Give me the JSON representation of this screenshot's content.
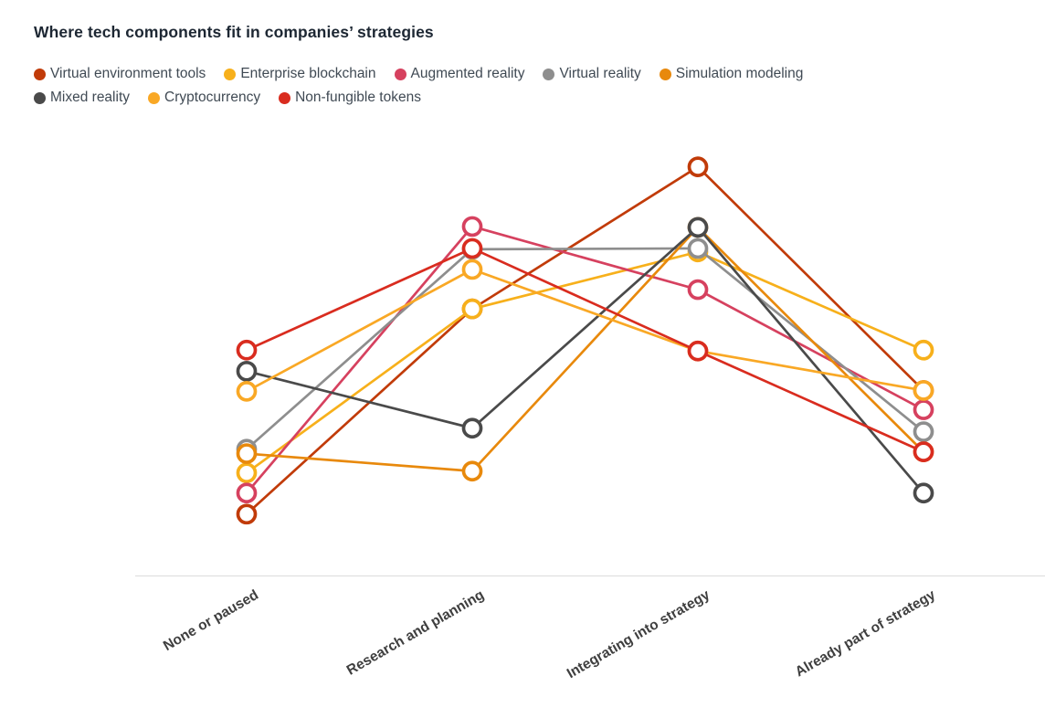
{
  "title": "Where tech components fit in companies’ strategies",
  "legend_rows": [
    [
      {
        "label": "Virtual environment tools",
        "color": "#c13b09"
      },
      {
        "label": "Enterprise blockchain",
        "color": "#f7b01b"
      },
      {
        "label": "Augmented reality",
        "color": "#d6415f"
      },
      {
        "label": "Virtual reality",
        "color": "#8e8e8e"
      },
      {
        "label": "Simulation modeling",
        "color": "#e8890c"
      }
    ],
    [
      {
        "label": "Mixed reality",
        "color": "#4a4a4a"
      },
      {
        "label": "Cryptocurrency",
        "color": "#f9a825"
      },
      {
        "label": "Non-fungible tokens",
        "color": "#d92c1f"
      }
    ]
  ],
  "chart_data": {
    "type": "line",
    "categories": [
      "None or paused",
      "Research and planning",
      "Integrating into strategy",
      "Already part of strategy"
    ],
    "series": [
      {
        "name": "Virtual environment tools",
        "color": "#c13b09",
        "values": [
          7.0,
          30.4,
          46.6,
          21.1
        ]
      },
      {
        "name": "Enterprise blockchain",
        "color": "#f7b01b",
        "values": [
          11.7,
          30.4,
          36.9,
          25.7
        ]
      },
      {
        "name": "Augmented reality",
        "color": "#d6415f",
        "values": [
          9.4,
          39.8,
          32.6,
          18.9
        ]
      },
      {
        "name": "Virtual reality",
        "color": "#8e8e8e",
        "values": [
          14.4,
          37.2,
          37.3,
          16.4
        ]
      },
      {
        "name": "Simulation modeling",
        "color": "#e8890c",
        "values": [
          13.9,
          11.9,
          39.7,
          14.1
        ]
      },
      {
        "name": "Mixed reality",
        "color": "#4a4a4a",
        "values": [
          23.3,
          16.8,
          39.7,
          9.4
        ]
      },
      {
        "name": "Cryptocurrency",
        "color": "#f9a825",
        "values": [
          21.0,
          34.9,
          25.6,
          21.1
        ]
      },
      {
        "name": "Non-fungible tokens",
        "color": "#d92c1f",
        "values": [
          25.7,
          37.3,
          25.6,
          14.1
        ]
      }
    ],
    "xlabel": "",
    "ylabel": "",
    "ylim": [
      0,
      50
    ],
    "y_axis_visible": false,
    "grid": false,
    "legend_position": "top",
    "marker": "open-circle",
    "note": "No y-axis is shown in the chart; values are estimated from point positions with the bottom axis line as 0."
  }
}
